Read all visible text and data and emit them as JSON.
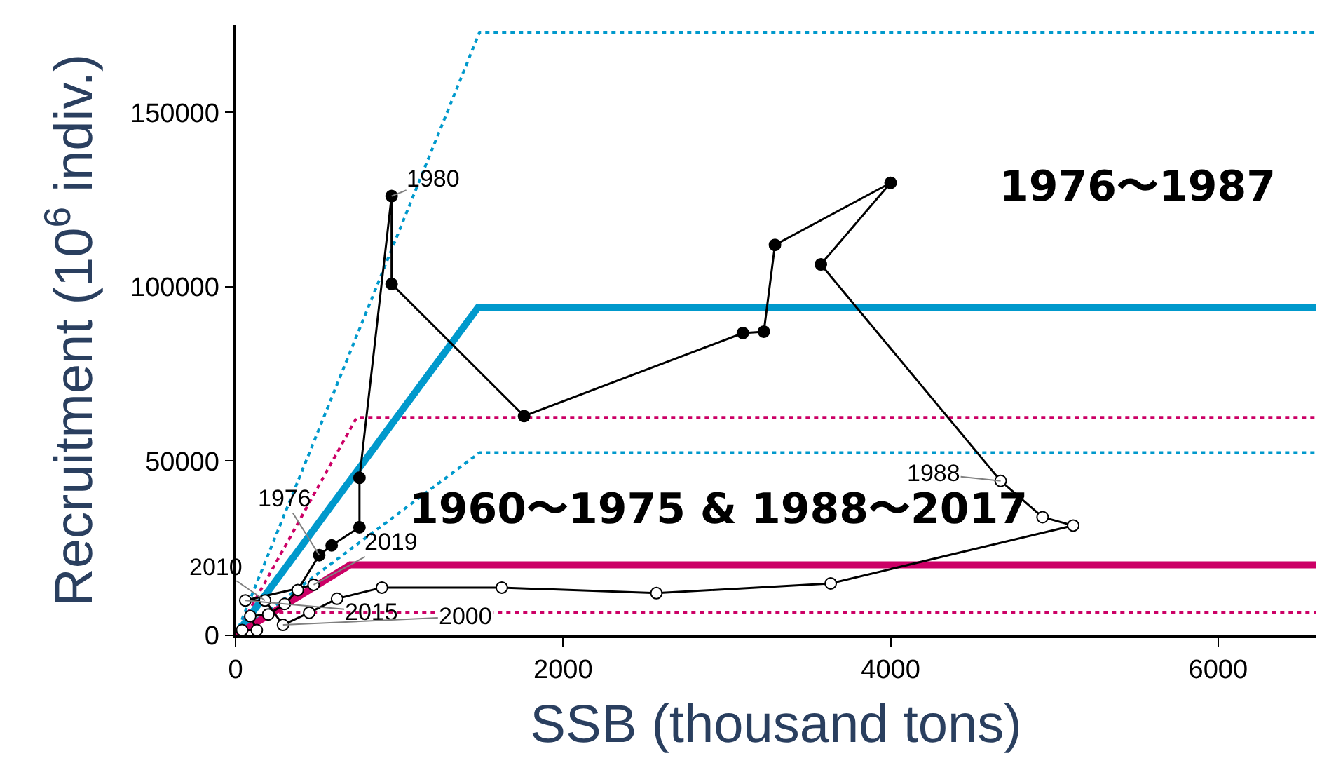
{
  "chart_data": {
    "type": "line",
    "xlabel": "SSB (thousand tons)",
    "ylabel": "Recruitment (10$^{6}$ indiv.)",
    "xlim": [
      0,
      6600
    ],
    "ylim": [
      0,
      175000
    ],
    "xticks": [
      0,
      2000,
      4000,
      6000
    ],
    "yticks": [
      0,
      50000,
      100000,
      150000
    ],
    "series": [
      {
        "type": "line",
        "color": "#0099cc",
        "line_style": "dotted",
        "x": [
          0,
          1490,
          6600
        ],
        "values": [
          0,
          173000,
          173000
        ]
      },
      {
        "type": "line",
        "color": "#0099cc",
        "line_style": "dotted",
        "x": [
          0,
          1490,
          6600
        ],
        "values": [
          0,
          52400,
          52400
        ]
      },
      {
        "type": "line",
        "color": "#cc0066",
        "line_style": "dotted",
        "x": [
          0,
          740,
          6600
        ],
        "values": [
          0,
          62500,
          62500
        ]
      },
      {
        "type": "line",
        "color": "#cc0066",
        "line_style": "dotted",
        "x": [
          0,
          210,
          6600
        ],
        "values": [
          0,
          6500,
          6500
        ]
      },
      {
        "type": "line",
        "color": "#0099cc",
        "line_style": "solid",
        "x": [
          0,
          1480,
          6600
        ],
        "values": [
          0,
          94000,
          94000
        ]
      },
      {
        "type": "line",
        "color": "#cc0066",
        "line_style": "solid",
        "x": [
          0,
          700,
          6600
        ],
        "values": [
          0,
          20200,
          20200
        ]
      },
      {
        "type": "line",
        "color": "#000000",
        "line_style": "solid",
        "x": [
          40,
          130,
          90,
          200,
          300,
          380,
          511,
          587,
          757,
          757,
          953,
          953,
          1762,
          3098,
          3226,
          3294,
          4000,
          3574,
          4672,
          4928,
          5115,
          3634,
          2570,
          1626,
          894,
          620,
          450,
          290,
          180,
          60,
          477
        ],
        "values": [
          1500,
          1500,
          5500,
          6000,
          9000,
          13000,
          23000,
          25800,
          31000,
          45200,
          126000,
          100800,
          62900,
          86700,
          87100,
          112000,
          129800,
          106400,
          44300,
          33900,
          31500,
          14900,
          12100,
          13700,
          13700,
          10500,
          6500,
          3000,
          10000,
          10000,
          14500
        ]
      },
      {
        "type": "scatter",
        "color": "#000000",
        "marker": "circle",
        "x": [
          511,
          587,
          757,
          757,
          953,
          953,
          1762,
          3098,
          3226,
          3294,
          4000,
          3574
        ],
        "values": [
          23000,
          25800,
          31000,
          45200,
          126000,
          100800,
          62900,
          86700,
          87100,
          112000,
          129800,
          106400
        ]
      },
      {
        "type": "scatter",
        "color": "#ffffff",
        "marker": "circle",
        "x": [
          40,
          130,
          90,
          200,
          300,
          380,
          4672,
          4928,
          5115,
          3634,
          2570,
          1626,
          894,
          620,
          450,
          290,
          180,
          60,
          477
        ],
        "values": [
          1500,
          1500,
          5500,
          6000,
          9000,
          13000,
          44300,
          33900,
          31500,
          14900,
          12100,
          13700,
          13700,
          10500,
          6500,
          3000,
          10000,
          10000,
          14500
        ]
      }
    ],
    "annotations": [
      {
        "text": "1976",
        "x": 511,
        "y": 23000
      },
      {
        "text": "1980",
        "x": 953,
        "y": 126000
      },
      {
        "text": "1988",
        "x": 4672,
        "y": 44300
      },
      {
        "text": "2010",
        "x": 180,
        "y": 10000
      },
      {
        "text": "2019",
        "x": 477,
        "y": 14500
      },
      {
        "text": "2015",
        "x": 60,
        "y": 10000
      },
      {
        "text": "2000",
        "x": 290,
        "y": 3000
      },
      "1976〜1987",
      "1960〜1975 & 1988〜2017"
    ]
  }
}
